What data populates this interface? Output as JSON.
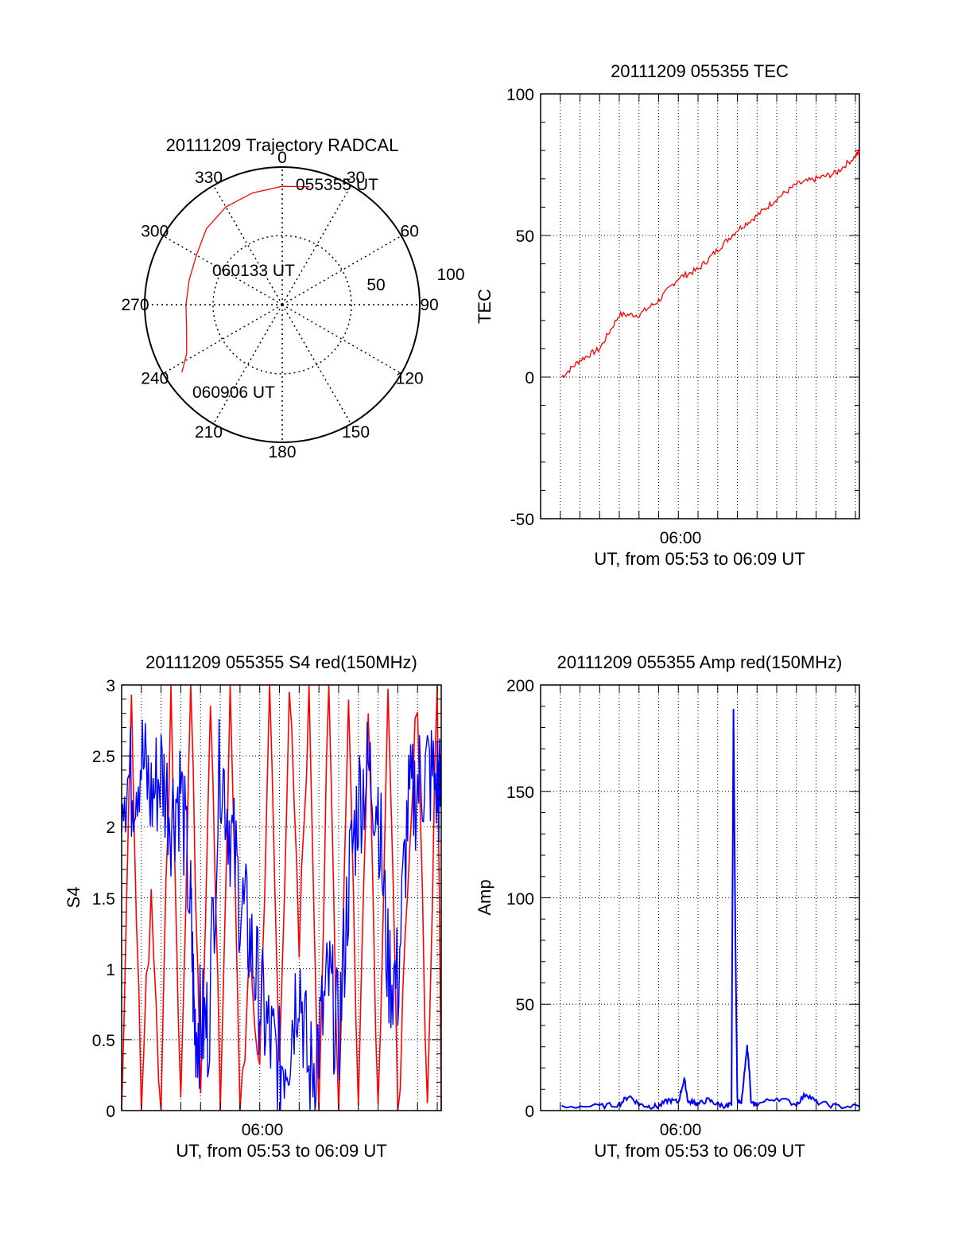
{
  "colors": {
    "red": "#ff0000",
    "blue": "#0000ff",
    "axis": "#000000",
    "grid": "#000000"
  },
  "chart_data": [
    {
      "id": "trajectory",
      "type": "polar",
      "title": "20111209 Trajectory RADCAL",
      "azimuth_labels": [
        "0",
        "30",
        "60",
        "90",
        "120",
        "150",
        "180",
        "210",
        "240",
        "270",
        "300",
        "330"
      ],
      "radial_labels": [
        "50",
        "100"
      ],
      "rlim": [
        0,
        100
      ],
      "track": {
        "azimuth_deg": [
          2,
          10,
          18,
          25,
          32,
          40,
          48,
          55,
          60,
          63,
          64
        ],
        "zenith_deg": [
          82,
          80,
          77,
          74,
          71,
          70,
          70,
          73,
          77,
          81,
          86
        ],
        "color": "#ff0000"
      },
      "annotations": [
        {
          "text": "055355 UT",
          "azimuth_deg": 25,
          "zenith_deg": 80
        },
        {
          "text": "060133 UT",
          "azimuth_deg": 300,
          "zenith_deg": 48
        },
        {
          "text": "060906 UT",
          "azimuth_deg": 235,
          "zenith_deg": 90
        }
      ]
    },
    {
      "id": "tec",
      "type": "line",
      "title": "20111209 055355 TEC",
      "ylabel": "TEC",
      "xlabel": "UT, from 05:53 to 06:09 UT",
      "xlim_min": [
        -7,
        9.2
      ],
      "ylim": [
        -50,
        100
      ],
      "y_ticks": [
        "100",
        "50",
        "0",
        "-50"
      ],
      "x_tick_label": "06:00",
      "x": [
        -5.93,
        -5,
        -4,
        -3,
        -2,
        -1,
        0,
        1,
        2,
        3,
        4,
        5,
        6,
        7,
        8,
        9,
        9.2
      ],
      "y": [
        0,
        6,
        10,
        22,
        22,
        27,
        35,
        38,
        45,
        52,
        57,
        63,
        68,
        70,
        72,
        78,
        80
      ],
      "series": [
        {
          "color": "#ff0000"
        }
      ]
    },
    {
      "id": "s4",
      "type": "line",
      "title": "20111209 055355 S4 red(150MHz)",
      "ylabel": "S4",
      "xlabel": "UT, from 05:53 to 06:09 UT",
      "xlim_min": [
        -7,
        9.2
      ],
      "ylim": [
        0,
        3
      ],
      "y_ticks": [
        "3",
        "2.5",
        "2",
        "1.5",
        "1",
        "0.5",
        "0"
      ],
      "x_tick_label": "06:00",
      "series": [
        {
          "color": "#0000ff",
          "x": [
            -7,
            -6.5,
            -6,
            -5.5,
            -5,
            -4.5,
            -4,
            -3.5,
            -3.3,
            -3,
            -2.6,
            -2,
            -1.5,
            -1,
            -0.5,
            0,
            0.5,
            1,
            1.5,
            2,
            2.5,
            3,
            3.5,
            4,
            4.5,
            5,
            5.5,
            6,
            6.5,
            7,
            7.5,
            8,
            8.5,
            9,
            9.2
          ],
          "y": [
            2.4,
            2.3,
            2.5,
            2.2,
            2.4,
            2.1,
            2.3,
            1.4,
            0.6,
            0.6,
            0.6,
            2.5,
            2.0,
            1.5,
            1.2,
            0.8,
            0.5,
            0.3,
            0.5,
            1.0,
            0.2,
            0.5,
            0.9,
            0.5,
            1.6,
            2.2,
            2.4,
            2.2,
            1.0,
            0.9,
            2.1,
            2.3,
            2.4,
            2.3,
            2.2
          ]
        },
        {
          "color": "#ff0000",
          "x": [
            -7,
            -6.5,
            -6,
            -5.5,
            -5,
            -4.5,
            -4,
            -3.5,
            -3,
            -2.5,
            -2,
            -1.5,
            -1,
            -0.5,
            0,
            0.5,
            1,
            1.5,
            2,
            2.5,
            3,
            3.5,
            4,
            4.5,
            5,
            5.5,
            6,
            6.5,
            7,
            7.5,
            8,
            8.5,
            9,
            9.2
          ],
          "y": [
            0,
            3,
            0,
            1.6,
            0,
            3,
            0,
            3,
            0,
            3,
            0,
            3,
            0,
            1.0,
            0.3,
            3,
            0.3,
            3,
            1.1,
            3,
            0,
            3,
            0,
            3,
            0,
            3,
            0,
            3,
            0,
            1.4,
            3,
            0,
            3,
            0
          ]
        }
      ]
    },
    {
      "id": "amp",
      "type": "line",
      "title": "20111209 055355 Amp red(150MHz)",
      "ylabel": "Amp",
      "xlabel": "UT, from 05:53 to 06:09 UT",
      "xlim_min": [
        -7,
        9.2
      ],
      "ylim": [
        0,
        200
      ],
      "y_ticks": [
        "200",
        "150",
        "100",
        "50",
        "0"
      ],
      "x_tick_label": "06:00",
      "x": [
        -5.93,
        -4,
        -3,
        -2.5,
        -2,
        -1.5,
        -1,
        -0.5,
        0,
        0.3,
        0.5,
        0.8,
        1,
        1.5,
        2,
        2.5,
        2.7,
        2.8,
        2.9,
        3.0,
        3.2,
        3.5,
        3.6,
        3.7,
        4,
        5,
        6,
        6.5,
        7,
        8,
        9.2
      ],
      "y": [
        2,
        2,
        3,
        7,
        3,
        2,
        2,
        5,
        4,
        15,
        4,
        4,
        3,
        5,
        3,
        2,
        3,
        190,
        80,
        5,
        3,
        30,
        20,
        3,
        3,
        6,
        3,
        8,
        4,
        2,
        2
      ],
      "series": [
        {
          "color": "#0000ff"
        }
      ]
    }
  ]
}
